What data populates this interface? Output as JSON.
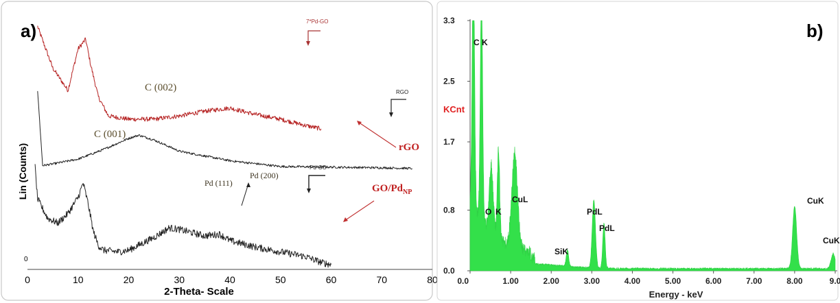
{
  "colors": {
    "red": "#b52020",
    "dark_red": "#a83232",
    "ink": "#222222",
    "green": "#33e04a",
    "label_red": "#e02020",
    "ann": "#5a4d2c"
  },
  "chart_data": [
    {
      "panel_label": "a)",
      "type": "line",
      "xlabel": "2-Theta- Scale",
      "ylabel": "Lin (Counts)",
      "xlim": [
        0,
        80
      ],
      "xticks": [
        "0",
        "10",
        "20",
        "30",
        "40",
        "50",
        "60",
        "70",
        "80"
      ],
      "yticks": [
        "0"
      ],
      "grid": false,
      "series": [
        {
          "name": "7*Pd-GO",
          "color": "#b52020",
          "x": [
            2,
            5,
            8,
            10,
            11.5,
            12.5,
            14,
            16,
            20,
            25,
            30,
            35,
            40,
            45,
            50,
            55,
            58
          ],
          "y": [
            760,
            630,
            560,
            690,
            720,
            640,
            540,
            480,
            470,
            470,
            480,
            495,
            505,
            485,
            470,
            450,
            440
          ]
        },
        {
          "name": "RGO",
          "color": "#222222",
          "x": [
            2,
            3,
            5,
            10,
            15,
            20,
            22,
            25,
            30,
            40,
            50,
            60,
            70,
            76
          ],
          "y": [
            560,
            325,
            330,
            345,
            375,
            410,
            420,
            405,
            370,
            340,
            322,
            320,
            318,
            316
          ]
        },
        {
          "name": "Pd-GO",
          "color": "#222222",
          "x": [
            1.5,
            2,
            4,
            6,
            8,
            10,
            11,
            12,
            13,
            14,
            15,
            18,
            20,
            25,
            28,
            30,
            35,
            38,
            40,
            45,
            50,
            55,
            58,
            60
          ],
          "y": [
            320,
            220,
            160,
            145,
            175,
            225,
            270,
            205,
            120,
            75,
            60,
            55,
            60,
            100,
            130,
            125,
            105,
            110,
            90,
            70,
            55,
            40,
            22,
            15
          ]
        }
      ],
      "annotations": [
        {
          "text": "C (002)",
          "x": 24.5,
          "y": 450
        },
        {
          "text": "C (001)",
          "x": 16,
          "y": 280
        },
        {
          "text": "Pd (111)",
          "x": 37.5,
          "y": 150
        },
        {
          "text": "Pd (200)",
          "x": 45,
          "y": 180
        }
      ],
      "series_labels": [
        "7*Pd-GO",
        "RGO",
        "Pd-GO"
      ],
      "right_labels": {
        "rgo": "rGO",
        "gopd_main": "GO/Pd",
        "gopd_sub": "NP"
      }
    },
    {
      "panel_label": "b)",
      "type": "area",
      "xlabel": "Energy - keV",
      "ylabel": "KCnt",
      "xlim": [
        0,
        9.0
      ],
      "ylim": [
        0,
        3.3
      ],
      "xticks": [
        "0.0",
        "1.00",
        "2.00",
        "3.00",
        "4.00",
        "5.00",
        "6.00",
        "7.00",
        "8.00",
        "9.0"
      ],
      "yticks": [
        "0.0",
        "0.8",
        "1.7",
        "2.5",
        "3.3"
      ],
      "grid": false,
      "peaks": [
        {
          "x": 0.08,
          "y": 3.3,
          "label": "C K"
        },
        {
          "x": 0.28,
          "y": 3.0,
          "label": ""
        },
        {
          "x": 0.52,
          "y": 0.9,
          "label": "O"
        },
        {
          "x": 0.7,
          "y": 1.2,
          "label": "K"
        },
        {
          "x": 1.1,
          "y": 1.25,
          "label": "CuL"
        },
        {
          "x": 2.4,
          "y": 0.22,
          "label": "SiK"
        },
        {
          "x": 3.05,
          "y": 0.9,
          "label": "PdL"
        },
        {
          "x": 3.3,
          "y": 0.6,
          "label": "PdL"
        },
        {
          "x": 8.0,
          "y": 0.82,
          "label": "CuK"
        },
        {
          "x": 8.95,
          "y": 0.2,
          "label": "CuK"
        }
      ]
    }
  ]
}
